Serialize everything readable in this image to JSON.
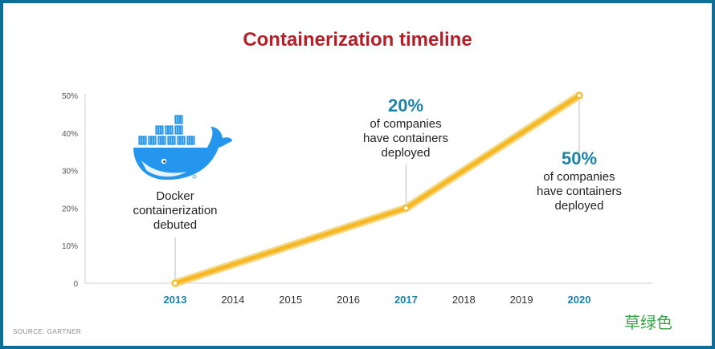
{
  "title": "Containerization timeline",
  "source": "SOURCE: GARTNER",
  "watermark": "草绿色",
  "colors": {
    "border": "#0d6f95",
    "title": "#b3202a",
    "line": "#f7b824",
    "accent": "#1c82a8",
    "whale": "#2496ed"
  },
  "annotations": {
    "docker": {
      "lines": [
        "Docker",
        "containerization",
        "debuted"
      ],
      "icon": "docker-whale-icon"
    },
    "y2017": {
      "value": "20%",
      "lines": [
        "of companies",
        "have containers",
        "deployed"
      ]
    },
    "y2020": {
      "value": "50%",
      "lines": [
        "of companies",
        "have containers",
        "deployed"
      ]
    }
  },
  "chart_data": {
    "type": "line",
    "title": "Containerization timeline",
    "xlabel": "",
    "ylabel": "",
    "x": [
      2013,
      2017,
      2020
    ],
    "y": [
      0,
      20,
      50
    ],
    "x_ticks": [
      "2013",
      "2014",
      "2015",
      "2016",
      "2017",
      "2018",
      "2019",
      "2020"
    ],
    "highlighted_x_ticks": [
      "2013",
      "2017",
      "2020"
    ],
    "y_ticks": [
      "0",
      "10%",
      "20%",
      "30%",
      "40%",
      "50%"
    ],
    "y_tick_values": [
      0,
      10,
      20,
      30,
      40,
      50
    ],
    "xlim": [
      2013,
      2020
    ],
    "ylim": [
      0,
      50
    ],
    "grid": false,
    "legend": "none"
  }
}
